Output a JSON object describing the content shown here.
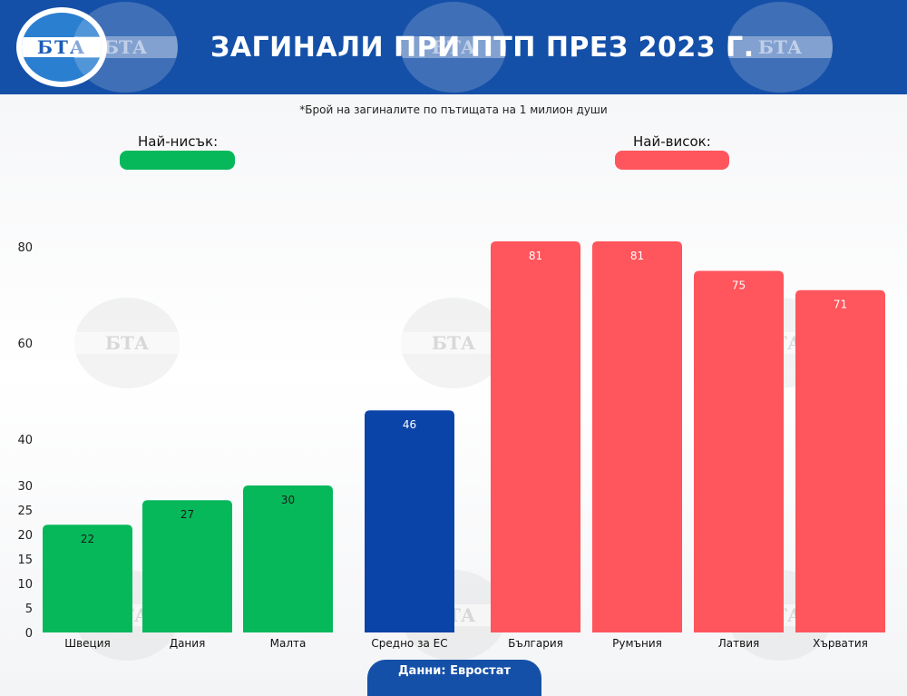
{
  "header": {
    "logo_text": "БТА",
    "title": "ЗАГИНАЛИ ПРИ ПТП ПРЕЗ 2023 Г."
  },
  "subtitle": "*Брой на загиналите по пътищата на 1 милион души",
  "legend": {
    "lowest_label": "Най-нисък:",
    "lowest_color": "#06b85a",
    "highest_label": "Най-висок:",
    "highest_color": "#ff555c"
  },
  "source_label": "Данни: Евростат",
  "chart_data": {
    "type": "bar",
    "categories": [
      "Швеция",
      "Дания",
      "Малта",
      "Средно за ЕС",
      "България",
      "Румъния",
      "Латвия",
      "Хърватия"
    ],
    "values": [
      22,
      27,
      30,
      46,
      81,
      81,
      75,
      71
    ],
    "bar_colors": [
      "#06b85a",
      "#06b85a",
      "#06b85a",
      "#0b44a8",
      "#ff555c",
      "#ff555c",
      "#ff555c",
      "#ff555c"
    ],
    "data_labels": [
      "22",
      "27",
      "30",
      "46",
      "81",
      "81",
      "75",
      "71"
    ],
    "y_ticks": [
      0,
      5,
      10,
      15,
      20,
      25,
      30,
      40,
      60,
      80
    ],
    "y_tick_labels": [
      "0",
      "5",
      "10",
      "15",
      "20",
      "25",
      "30",
      "40",
      "60",
      "80"
    ],
    "ylim": [
      0,
      81
    ],
    "grid": false
  }
}
